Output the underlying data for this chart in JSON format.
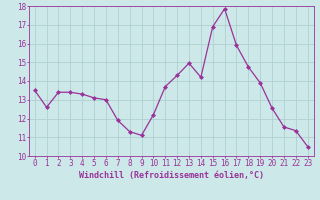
{
  "x": [
    0,
    1,
    2,
    3,
    4,
    5,
    6,
    7,
    8,
    9,
    10,
    11,
    12,
    13,
    14,
    15,
    16,
    17,
    18,
    19,
    20,
    21,
    22,
    23
  ],
  "y": [
    13.5,
    12.6,
    13.4,
    13.4,
    13.3,
    13.1,
    13.0,
    11.9,
    11.3,
    11.1,
    12.2,
    13.7,
    14.3,
    14.95,
    14.2,
    16.9,
    17.85,
    15.9,
    14.75,
    13.9,
    12.55,
    11.55,
    11.35,
    10.5
  ],
  "line_color": "#993399",
  "marker": "D",
  "marker_size": 2,
  "background_color": "#cce8e8",
  "grid_color": "#b0d0d0",
  "xlabel": "Windchill (Refroidissement éolien,°C)",
  "ylim": [
    10,
    18
  ],
  "xlim_min": -0.5,
  "xlim_max": 23.5,
  "yticks": [
    10,
    11,
    12,
    13,
    14,
    15,
    16,
    17,
    18
  ],
  "xticks": [
    0,
    1,
    2,
    3,
    4,
    5,
    6,
    7,
    8,
    9,
    10,
    11,
    12,
    13,
    14,
    15,
    16,
    17,
    18,
    19,
    20,
    21,
    22,
    23
  ],
  "axis_fontsize": 6,
  "tick_fontsize": 5.5
}
